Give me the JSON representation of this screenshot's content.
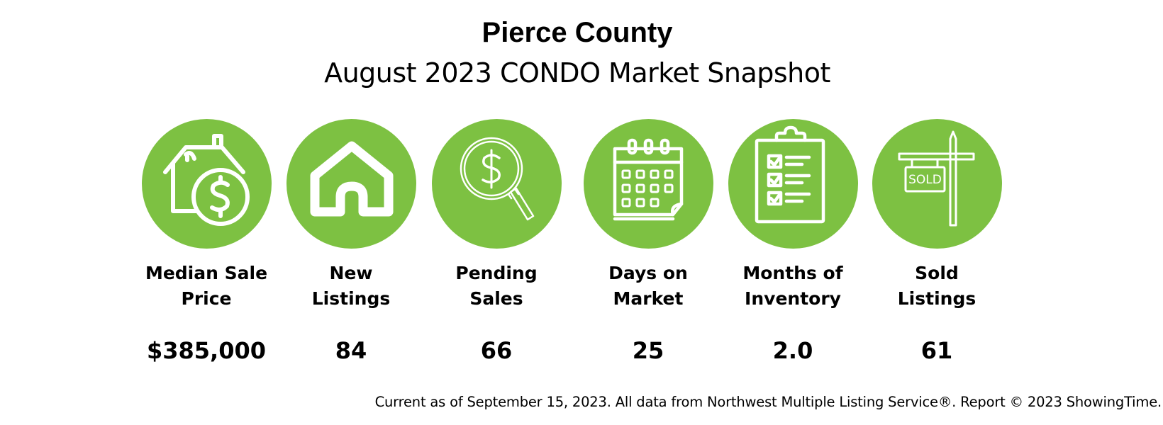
{
  "header": {
    "title": "Pierce County",
    "subtitle": "August 2023 CONDO Market Snapshot"
  },
  "metrics": [
    {
      "icon": "house-dollar-icon",
      "label_line1": "Median Sale",
      "label_line2": "Price",
      "value": "$385,000"
    },
    {
      "icon": "house-icon",
      "label_line1": "New",
      "label_line2": "Listings",
      "value": "84"
    },
    {
      "icon": "magnifier-dollar-icon",
      "label_line1": "Pending",
      "label_line2": "Sales",
      "value": "66"
    },
    {
      "icon": "calendar-icon",
      "label_line1": "Days on",
      "label_line2": "Market",
      "value": "25"
    },
    {
      "icon": "clipboard-checklist-icon",
      "label_line1": "Months of",
      "label_line2": "Inventory",
      "value": "2.0"
    },
    {
      "icon": "sold-sign-icon",
      "label_line1": "Sold",
      "label_line2": "Listings",
      "value": "61",
      "sign_text": "SOLD"
    }
  ],
  "colors": {
    "accent": "#7dc142"
  },
  "footer": {
    "note": "Current as of September 15, 2023. All data from Northwest Multiple Listing Service®. Report © 2023 ShowingTime."
  }
}
